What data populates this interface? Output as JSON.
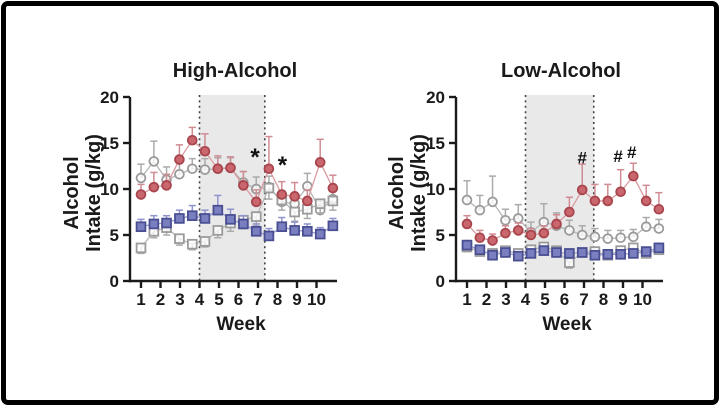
{
  "figure": {
    "ylabel_line1": "Alcohol",
    "ylabel_line2": "Intake (g/kg)",
    "xlabel": "Week"
  },
  "colors": {
    "axis": "#1a1a1a",
    "shaded_band": "#e9e9e9",
    "dotted_line": "#444444",
    "red_fill": "#ca666e",
    "red_stroke": "#a8454d",
    "red_line": "#d89ba0",
    "blue_fill": "#7a7fbf",
    "blue_stroke": "#4a4f93",
    "blue_line": "#989dd0",
    "gray_stroke": "#9b9b9b",
    "gray_line": "#b6b6b6",
    "open_fill": "#ffffff"
  },
  "chart_data": [
    {
      "type": "line",
      "title": "High-Alcohol",
      "xlabel": "Week",
      "ylabel": "Alcohol Intake (g/kg)",
      "ylim": [
        0,
        20
      ],
      "yticks": [
        0,
        5,
        10,
        15,
        20
      ],
      "xticks": [
        1,
        2,
        3,
        4,
        5,
        6,
        7,
        8,
        9,
        10
      ],
      "shaded_region_weeks": [
        4,
        7.35
      ],
      "x_weeks": [
        1,
        1.66,
        2.31,
        2.97,
        3.63,
        4.28,
        4.94,
        5.59,
        6.25,
        6.91,
        7.56,
        8.22,
        8.88,
        9.53,
        10.19,
        10.84
      ],
      "series": [
        {
          "name": "gray-open-circles",
          "marker": "circle",
          "filled": false,
          "err_dir": "up",
          "values": [
            11.2,
            13.0,
            11.0,
            11.6,
            12.2,
            12.1,
            12.2,
            12.3,
            10.7,
            10.0,
            10.2,
            8.6,
            8.4,
            10.3,
            7.7,
            8.9
          ],
          "err": [
            1.5,
            2.2,
            1.4,
            1.2,
            1.1,
            1.2,
            1.2,
            1.1,
            1.2,
            1.3,
            1.2,
            1.2,
            1.0,
            1.4,
            1.0,
            1.1
          ]
        },
        {
          "name": "gray-open-squares",
          "marker": "square",
          "filled": false,
          "err_dir": "down",
          "values": [
            3.6,
            5.4,
            5.8,
            4.6,
            4.0,
            4.3,
            5.5,
            6.3,
            6.6,
            7.0,
            10.1,
            8.8,
            7.5,
            7.8,
            8.4,
            8.7
          ],
          "err": [
            0.6,
            0.7,
            0.8,
            0.7,
            0.6,
            0.6,
            0.8,
            0.9,
            0.9,
            1.0,
            1.2,
            1.1,
            1.0,
            1.0,
            1.0,
            1.0
          ]
        },
        {
          "name": "red-filled-circles",
          "marker": "circle",
          "filled": true,
          "err_dir": "up",
          "values": [
            9.4,
            10.2,
            10.4,
            13.2,
            15.3,
            14.1,
            12.2,
            12.3,
            10.4,
            8.6,
            12.2,
            9.4,
            9.2,
            8.7,
            12.9,
            10.1
          ],
          "err": [
            1.1,
            1.6,
            1.2,
            1.6,
            1.4,
            1.9,
            1.4,
            1.2,
            1.5,
            1.3,
            3.5,
            1.4,
            1.5,
            1.2,
            2.5,
            1.4
          ]
        },
        {
          "name": "blue-filled-squares",
          "marker": "square",
          "filled": true,
          "err_dir": "up",
          "values": [
            5.9,
            6.2,
            6.3,
            6.8,
            7.1,
            6.8,
            7.7,
            6.7,
            6.2,
            5.4,
            4.9,
            5.9,
            5.5,
            5.4,
            5.1,
            6.0
          ],
          "err": [
            0.8,
            0.9,
            0.8,
            0.9,
            1.1,
            0.9,
            1.6,
            1.1,
            0.9,
            0.8,
            0.8,
            1.0,
            0.9,
            0.8,
            0.7,
            0.8
          ]
        }
      ],
      "annotations": [
        {
          "symbol": "*",
          "week": 6.85,
          "value": 13.6
        },
        {
          "symbol": "*",
          "week": 8.25,
          "value": 12.7
        }
      ]
    },
    {
      "type": "line",
      "title": "Low-Alcohol",
      "xlabel": "Week",
      "ylabel": "Alcohol Intake (g/kg)",
      "ylim": [
        0,
        20
      ],
      "yticks": [
        0,
        5,
        10,
        15,
        20
      ],
      "xticks": [
        1,
        2,
        3,
        4,
        5,
        6,
        7,
        8,
        9,
        10
      ],
      "shaded_region_weeks": [
        4,
        7.5
      ],
      "x_weeks": [
        1,
        1.66,
        2.31,
        2.97,
        3.63,
        4.28,
        4.94,
        5.59,
        6.25,
        6.91,
        7.56,
        8.22,
        8.88,
        9.53,
        10.19,
        10.84
      ],
      "series": [
        {
          "name": "gray-open-circles",
          "marker": "circle",
          "filled": false,
          "err_dir": "up",
          "values": [
            8.8,
            7.7,
            8.6,
            6.6,
            6.8,
            5.3,
            6.4,
            6.0,
            5.5,
            5.0,
            4.8,
            4.6,
            4.7,
            4.8,
            5.9,
            5.7
          ],
          "err": [
            2.1,
            1.6,
            2.8,
            1.2,
            1.5,
            1.1,
            2.0,
            1.4,
            1.1,
            1.0,
            0.9,
            0.9,
            0.8,
            0.8,
            1.0,
            1.0
          ]
        },
        {
          "name": "gray-open-squares",
          "marker": "square",
          "filled": false,
          "err_dir": "down",
          "values": [
            3.7,
            3.2,
            3.0,
            3.3,
            3.0,
            3.4,
            3.7,
            3.3,
            2.0,
            3.1,
            3.2,
            2.8,
            3.3,
            3.6,
            3.0,
            3.4
          ],
          "err": [
            0.5,
            0.4,
            0.4,
            0.4,
            0.4,
            0.5,
            0.5,
            0.5,
            0.6,
            0.4,
            0.4,
            0.4,
            0.5,
            0.5,
            0.4,
            0.5
          ]
        },
        {
          "name": "red-filled-circles",
          "marker": "circle",
          "filled": true,
          "err_dir": "up",
          "values": [
            6.2,
            4.7,
            4.4,
            5.2,
            5.5,
            5.0,
            5.2,
            6.2,
            7.5,
            9.9,
            8.7,
            8.7,
            9.7,
            11.4,
            8.7,
            7.8
          ],
          "err": [
            0.9,
            0.8,
            0.7,
            0.8,
            0.8,
            0.7,
            0.8,
            1.0,
            1.6,
            2.8,
            1.8,
            1.8,
            2.4,
            1.4,
            1.7,
            1.8
          ]
        },
        {
          "name": "blue-filled-squares",
          "marker": "square",
          "filled": true,
          "err_dir": "up",
          "values": [
            3.9,
            3.4,
            2.8,
            3.1,
            2.7,
            3.0,
            3.3,
            3.1,
            3.0,
            3.1,
            2.8,
            2.9,
            2.9,
            3.0,
            3.2,
            3.6
          ],
          "err": [
            0.5,
            0.4,
            0.4,
            0.4,
            0.4,
            0.4,
            0.5,
            0.4,
            0.4,
            0.4,
            0.4,
            0.4,
            0.4,
            0.4,
            0.4,
            0.5
          ]
        }
      ],
      "annotations": [
        {
          "symbol": "#",
          "week": 6.91,
          "value": 13.3
        },
        {
          "symbol": "#",
          "week": 8.75,
          "value": 13.5
        },
        {
          "symbol": "#",
          "week": 9.45,
          "value": 13.9
        }
      ]
    }
  ]
}
